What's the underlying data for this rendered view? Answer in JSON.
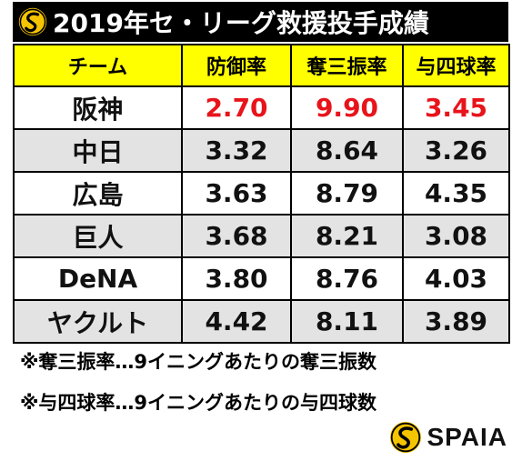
{
  "title": "2019年セ・リーグ救援投手成績",
  "table": {
    "headers": [
      "チーム",
      "防御率",
      "奪三振率",
      "与四球率"
    ],
    "rows": [
      {
        "team": "阪神",
        "era": "2.70",
        "k_rate": "9.90",
        "bb_rate": "3.45"
      },
      {
        "team": "中日",
        "era": "3.32",
        "k_rate": "8.64",
        "bb_rate": "3.26"
      },
      {
        "team": "広島",
        "era": "3.63",
        "k_rate": "8.79",
        "bb_rate": "4.35"
      },
      {
        "team": "巨人",
        "era": "3.68",
        "k_rate": "8.21",
        "bb_rate": "3.08"
      },
      {
        "team": "DeNA",
        "era": "3.80",
        "k_rate": "8.76",
        "bb_rate": "4.03"
      },
      {
        "team": "ヤクルト",
        "era": "4.42",
        "k_rate": "8.11",
        "bb_rate": "3.89"
      }
    ]
  },
  "notes": [
    "※奪三振率…9イニングあたりの奪三振数",
    "※与四球率…9イニングあたりの与四球数"
  ],
  "brand": {
    "name": "SPAIA",
    "icon": "spaia-logo"
  },
  "colors": {
    "header_bg": "#ffff00",
    "highlight": "#e8141b",
    "alt_row": "#e3e3e3",
    "logo_yellow": "#f5c400"
  }
}
